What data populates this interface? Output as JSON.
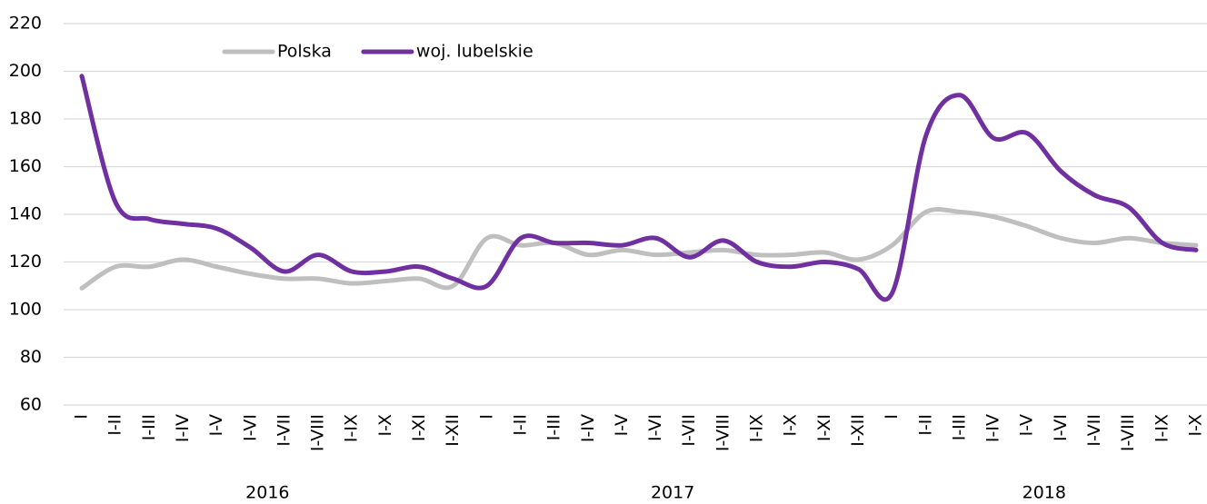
{
  "chart_data": {
    "type": "line",
    "category_groups": [
      {
        "name": "2016",
        "categories": [
          "I",
          "I-II",
          "I-III",
          "I-IV",
          "I-V",
          "I-VI",
          "I-VII",
          "I-VIII",
          "I-IX",
          "I-X",
          "I-XI",
          "I-XII"
        ]
      },
      {
        "name": "2017",
        "categories": [
          "I",
          "I-II",
          "I-III",
          "I-IV",
          "I-V",
          "I-VI",
          "I-VII",
          "I-VIII",
          "I-IX",
          "I-X",
          "I-XI",
          "I-XII"
        ]
      },
      {
        "name": "2018",
        "categories": [
          "I",
          "I-II",
          "I-III",
          "I-IV",
          "I-V",
          "I-VI",
          "I-VII",
          "I-VIII",
          "I-IX",
          "I-X"
        ]
      }
    ],
    "series": [
      {
        "name": "Polska",
        "color": "#bfbfbf",
        "values": [
          109,
          118,
          118,
          121,
          118,
          115,
          113,
          113,
          111,
          112,
          113,
          110,
          130,
          127,
          128,
          123,
          125,
          123,
          124,
          125,
          123,
          123,
          124,
          121,
          127,
          141,
          141,
          139,
          135,
          130,
          128,
          130,
          128,
          127
        ]
      },
      {
        "name": "woj. lubelskie",
        "color": "#7030a0",
        "values": [
          198,
          145,
          138,
          136,
          134,
          126,
          116,
          123,
          116,
          116,
          118,
          113,
          110,
          130,
          128,
          128,
          127,
          130,
          122,
          129,
          120,
          118,
          120,
          117,
          107,
          173,
          190,
          172,
          174,
          158,
          148,
          143,
          128,
          125
        ]
      }
    ],
    "ylim": [
      60,
      220
    ],
    "yticks": [
      60,
      80,
      100,
      120,
      140,
      160,
      180,
      200,
      220
    ],
    "grid": true,
    "legend": "top-left"
  }
}
